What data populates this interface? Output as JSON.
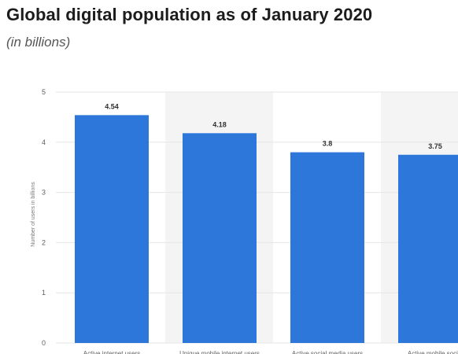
{
  "title": "Global digital population as of January 2020",
  "subtitle": "(in billions)",
  "chart_data": {
    "type": "bar",
    "categories": [
      "Active internet users",
      "Unique mobile internet users",
      "Active social media users",
      "Active mobile social"
    ],
    "values": [
      4.54,
      4.18,
      3.8,
      3.75
    ],
    "value_labels": [
      "4.54",
      "4.18",
      "3.8",
      "3.75"
    ],
    "ylabel": "Number of users in billions",
    "ylim": [
      0,
      5
    ],
    "yticks": [
      0,
      1,
      2,
      3,
      4,
      5
    ],
    "grid": true,
    "colors": {
      "bar": "#2d77db",
      "band": "#f4f4f4",
      "grid": "#e6e6e6"
    }
  }
}
